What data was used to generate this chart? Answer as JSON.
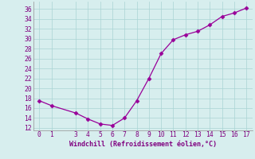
{
  "x": [
    0,
    1,
    3,
    4,
    5,
    6,
    7,
    8,
    9,
    10,
    11,
    12,
    13,
    14,
    15,
    16,
    17
  ],
  "y": [
    17.5,
    16.5,
    15.0,
    13.8,
    12.8,
    12.5,
    14.0,
    17.5,
    22.0,
    27.0,
    29.8,
    30.8,
    31.5,
    32.8,
    34.5,
    35.2,
    36.2
  ],
  "line_color": "#990099",
  "marker": "D",
  "marker_size": 2.5,
  "background_color": "#d7eeee",
  "grid_color": "#aad4d4",
  "xlabel": "Windchill (Refroidissement éolien,°C)",
  "xlabel_color": "#800080",
  "xlabel_fontsize": 6.0,
  "tick_color": "#800080",
  "tick_fontsize": 5.8,
  "ylim": [
    11.5,
    37.5
  ],
  "xlim": [
    -0.5,
    17.5
  ],
  "yticks": [
    12,
    14,
    16,
    18,
    20,
    22,
    24,
    26,
    28,
    30,
    32,
    34,
    36
  ],
  "xticks": [
    0,
    1,
    3,
    4,
    5,
    6,
    7,
    8,
    9,
    10,
    11,
    12,
    13,
    14,
    15,
    16,
    17
  ]
}
